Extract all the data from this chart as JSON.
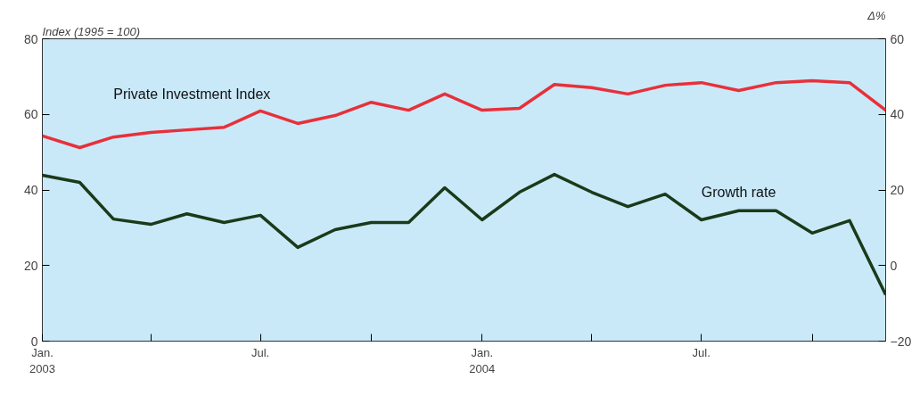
{
  "chart_data": {
    "type": "line",
    "ylabel": "Index (1995 = 100)",
    "y2label": "Δ%",
    "x": [
      "2003-01",
      "2003-02",
      "2003-03",
      "2003-04",
      "2003-05",
      "2003-06",
      "2003-07",
      "2003-08",
      "2003-09",
      "2003-10",
      "2003-11",
      "2003-12",
      "2004-01",
      "2004-02",
      "2004-03",
      "2004-04",
      "2004-05",
      "2004-06",
      "2004-07",
      "2004-08",
      "2004-09",
      "2004-10",
      "2004-11",
      "2004-12"
    ],
    "series": [
      {
        "name": "Private Investment Index",
        "color": "#e8303a",
        "values": [
          54.3,
          51.2,
          54.0,
          55.2,
          55.9,
          56.6,
          60.9,
          57.6,
          59.7,
          63.2,
          61.1,
          65.4,
          61.1,
          61.6,
          67.9,
          67.1,
          65.4,
          67.7,
          68.4,
          66.3,
          68.4,
          68.9,
          68.4,
          61.1
        ]
      },
      {
        "name": "Growth rate",
        "color": "#1a3a1a",
        "axis": "y2",
        "values": [
          23.9,
          22.0,
          12.3,
          10.9,
          13.7,
          11.4,
          13.3,
          4.8,
          9.5,
          11.4,
          11.4,
          20.6,
          12.1,
          19.4,
          24.1,
          19.4,
          15.6,
          18.9,
          12.1,
          14.5,
          14.5,
          8.6,
          11.9,
          -7.7
        ]
      }
    ],
    "xlim": [
      "2003-01",
      "2004-12"
    ],
    "xticks": [
      {
        "value": "2003-01",
        "label": "Jan.\n2003"
      },
      {
        "value": "2003-04",
        "label": null
      },
      {
        "value": "2003-07",
        "label": "Jul."
      },
      {
        "value": "2003-10",
        "label": null
      },
      {
        "value": "2004-01",
        "label": "Jan.\n2004"
      },
      {
        "value": "2004-04",
        "label": null
      },
      {
        "value": "2004-07",
        "label": "Jul."
      },
      {
        "value": "2004-10",
        "label": null
      }
    ],
    "ylim": [
      0,
      80
    ],
    "yticks": [
      0,
      20,
      40,
      60,
      80
    ],
    "y2lim": [
      -20,
      60
    ],
    "y2ticks": [
      -20,
      0,
      20,
      40,
      60
    ],
    "grid": false,
    "line_style": "solid",
    "marker": "none"
  }
}
